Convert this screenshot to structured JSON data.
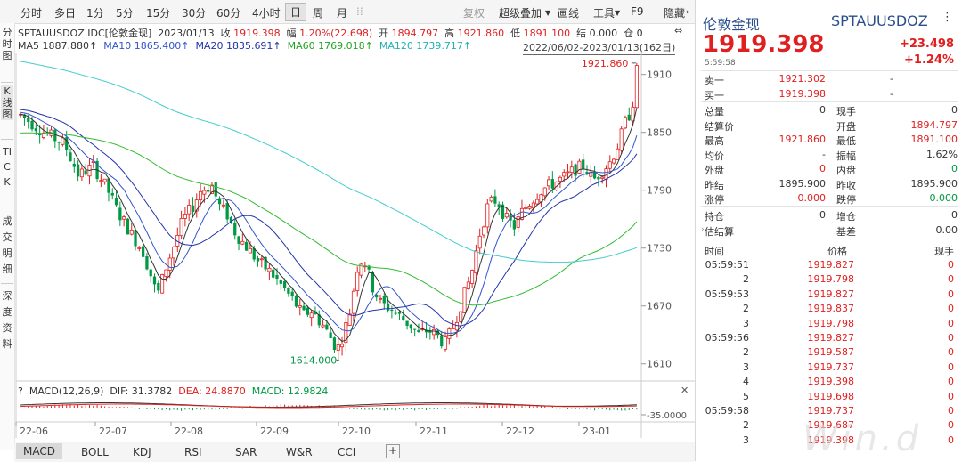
{
  "toolbar": {
    "periods": [
      "分时",
      "多日",
      "1分",
      "5分",
      "15分",
      "30分",
      "60分",
      "4小时",
      "日",
      "周",
      "月"
    ],
    "active_period": "日",
    "right_items": [
      "复权",
      "超级叠加",
      "画线",
      "工具",
      "F9",
      "隐藏"
    ]
  },
  "side_tabs": [
    "分时图",
    "K线图",
    "TICK",
    "成交明细",
    "深度资料"
  ],
  "info_line1": {
    "code": "SPTAUUSDOZ.IDC[伦敦金现]",
    "date": "2023/01/13",
    "close_label": "收",
    "close": "1919.398",
    "amp_label": "幅",
    "amp": "1.20%(22.698)",
    "open_label": "开",
    "open": "1894.797",
    "high_label": "高",
    "high": "1921.860",
    "low_label": "低",
    "low": "1891.100",
    "settle_label": "结",
    "settle": "0.000",
    "pos_label": "仓",
    "pos": "0"
  },
  "ma_line": {
    "ma5": "MA5 1887.880↑",
    "ma10": "MA10 1865.400↑",
    "ma20": "MA20 1835.691↑",
    "ma60": "MA60 1769.018↑",
    "ma120": "MA120 1739.717↑",
    "range": "2022/06/02-2023/01/13(162日)"
  },
  "y_ticks": [
    "1910",
    "1850",
    "1790",
    "1730",
    "1670",
    "1610"
  ],
  "macd_y_tick": "-35.0000",
  "annotations": {
    "high": "1921.860",
    "low": "1614.000"
  },
  "macd_line": {
    "help": "?",
    "name": "MACD(12,26,9)",
    "dif": "DIF: 31.3782",
    "dea": "DEA: 24.8870",
    "macd": "MACD: 12.9824",
    "close": "✕"
  },
  "x_ticks": [
    "22-06",
    "22-07",
    "22-08",
    "22-09",
    "22-10",
    "22-11",
    "22-12",
    "23-01"
  ],
  "bottom_tabs": [
    "MACD",
    "BOLL",
    "KDJ",
    "RSI",
    "SAR",
    "W&R",
    "CCI"
  ],
  "bottom_add": "+",
  "quote": {
    "name": "伦敦金现",
    "code": "SPTAUUSDOZ",
    "price": "1919.398",
    "change": "+23.498",
    "pct": "+1.24%",
    "time": "5:59:58"
  },
  "book": [
    {
      "label": "卖一",
      "price": "1921.302",
      "vol": "-"
    },
    {
      "label": "买一",
      "price": "1919.398",
      "vol": "-"
    }
  ],
  "stats": [
    {
      "l1": "总量",
      "v1": "0",
      "l2": "现手",
      "v2": "0",
      "c2": "dark"
    },
    {
      "l1": "结算价",
      "v1": "",
      "l2": "开盘",
      "v2": "1894.797",
      "c2": "red"
    },
    {
      "l1": "最高",
      "v1": "1921.860",
      "c1": "red",
      "l2": "最低",
      "v2": "1891.100",
      "c2": "red"
    },
    {
      "l1": "均价",
      "v1": "-",
      "l2": "振幅",
      "v2": "1.62%",
      "c2": "dark"
    },
    {
      "l1": "外盘",
      "v1": "0",
      "c1": "red",
      "l2": "内盘",
      "v2": "0",
      "c2": "green"
    },
    {
      "l1": "昨结",
      "v1": "1895.900",
      "l2": "昨收",
      "v2": "1895.900",
      "c2": "dark"
    },
    {
      "l1": "涨停",
      "v1": "0.000",
      "c1": "red",
      "l2": "跌停",
      "v2": "0.000",
      "c2": "green"
    }
  ],
  "stats2": [
    {
      "l1": "持仓",
      "v1": "0",
      "l2": "增仓",
      "v2": "0"
    },
    {
      "l1": "估结算",
      "v1": "",
      "l2": "基差",
      "v2": "0.00"
    }
  ],
  "trades_header": {
    "time": "时间",
    "price": "价格",
    "vol": "现手"
  },
  "trades": [
    {
      "time": "05:59:51",
      "price": "1919.827",
      "vol": "0"
    },
    {
      "time": "2",
      "price": "1919.798",
      "vol": "0"
    },
    {
      "time": "05:59:53",
      "price": "1919.827",
      "vol": "0"
    },
    {
      "time": "2",
      "price": "1919.837",
      "vol": "0"
    },
    {
      "time": "3",
      "price": "1919.798",
      "vol": "0"
    },
    {
      "time": "05:59:56",
      "price": "1919.827",
      "vol": "0"
    },
    {
      "time": "2",
      "price": "1919.587",
      "vol": "0"
    },
    {
      "time": "3",
      "price": "1919.737",
      "vol": "0"
    },
    {
      "time": "4",
      "price": "1919.398",
      "vol": "0"
    },
    {
      "time": "5",
      "price": "1919.698",
      "vol": "0"
    },
    {
      "time": "05:59:58",
      "price": "1919.737",
      "vol": "0"
    },
    {
      "time": "2",
      "price": "1919.687",
      "vol": "0"
    },
    {
      "time": "3",
      "price": "1919.398",
      "vol": "0"
    }
  ],
  "watermark": "Win.d",
  "colors": {
    "up": "#e02020",
    "down": "#009944",
    "ma5": "#333333",
    "ma10": "#3355cc",
    "ma20": "#2233aa",
    "ma60": "#33bb33",
    "ma120": "#44cccc"
  }
}
